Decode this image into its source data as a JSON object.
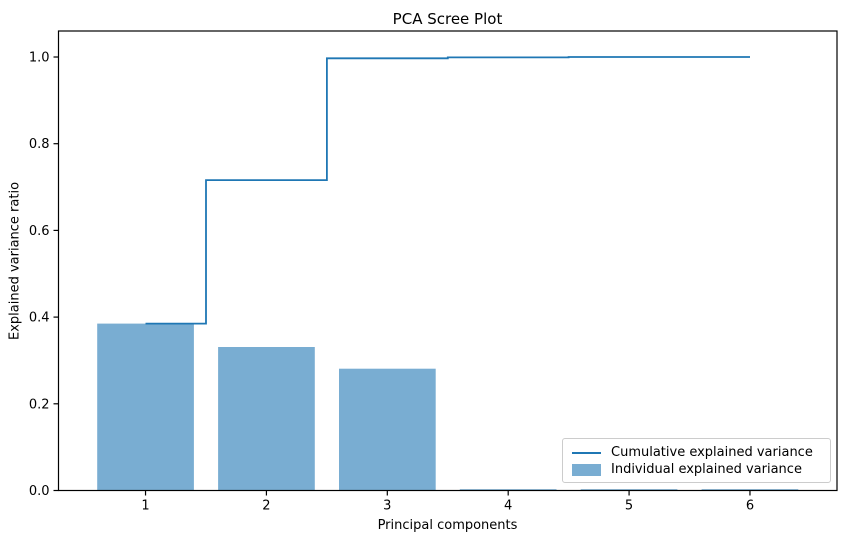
{
  "title": "PCA Scree Plot",
  "axes": {
    "xlabel": "Principal components",
    "ylabel": "Explained variance ratio",
    "x_tick_labels": [
      "1",
      "2",
      "3",
      "4",
      "5",
      "6"
    ],
    "y_tick_labels": [
      "0.0",
      "0.2",
      "0.4",
      "0.6",
      "0.8",
      "1.0"
    ]
  },
  "legend": {
    "items": [
      {
        "label": "Cumulative explained variance",
        "swatch": "line"
      },
      {
        "label": "Individual explained variance",
        "swatch": "patch"
      }
    ]
  },
  "colors": {
    "line": "#1f77b4",
    "bar": "#79add2",
    "spine": "#000000",
    "text": "#000000",
    "legend_border": "#cccccc",
    "background": "#ffffff"
  },
  "chart_data": {
    "type": "bar",
    "title": "PCA Scree Plot",
    "xlabel": "Principal components",
    "ylabel": "Explained variance ratio",
    "categories": [
      1,
      2,
      3,
      4,
      5,
      6
    ],
    "series": [
      {
        "name": "Individual explained variance",
        "type": "bar",
        "values": [
          0.385,
          0.331,
          0.281,
          0.002,
          0.001,
          0.001
        ]
      },
      {
        "name": "Cumulative explained variance",
        "type": "step-line-mid",
        "values": [
          0.385,
          0.716,
          0.997,
          0.999,
          1.0,
          1.0
        ]
      }
    ],
    "x_ticks": [
      1,
      2,
      3,
      4,
      5,
      6
    ],
    "y_ticks": [
      0.0,
      0.2,
      0.4,
      0.6,
      0.8,
      1.0
    ],
    "xlim": [
      0.28,
      6.72
    ],
    "ylim": [
      0,
      1.06
    ],
    "bar_width": 0.8,
    "grid": false,
    "legend_position": "lower right"
  }
}
